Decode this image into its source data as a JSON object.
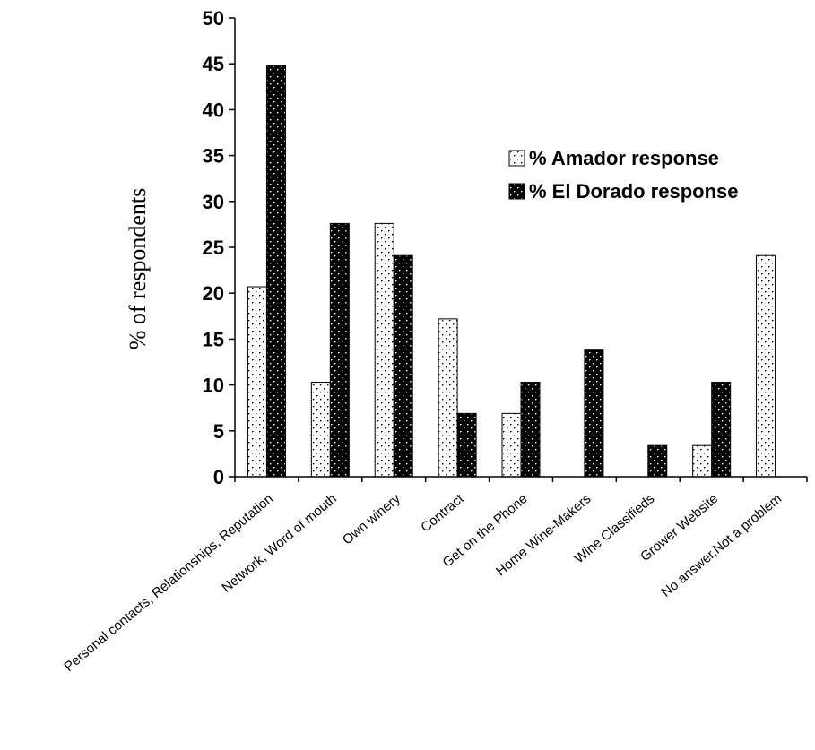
{
  "chart_data": {
    "type": "bar",
    "categories": [
      "Personal contacts, Relationships, Reputation",
      "Network, Word of mouth",
      "Own winery",
      "Contract",
      "Get on the Phone",
      "Home Wine-Makers",
      "Wine Classifieds",
      "Grower Website",
      "No answer,Not a problem"
    ],
    "series": [
      {
        "name": "% Amador response",
        "values": [
          20.7,
          10.3,
          27.6,
          17.2,
          6.9,
          0,
          0,
          3.4,
          24.1
        ],
        "color": "#ffffff",
        "pattern_dot": "#000000"
      },
      {
        "name": "% El Dorado response",
        "values": [
          44.8,
          27.6,
          24.1,
          6.9,
          10.3,
          13.8,
          3.4,
          10.3,
          0
        ],
        "color": "#000000",
        "pattern_dot": "#ffffff"
      }
    ],
    "title": "",
    "xlabel": "",
    "ylabel": "% of respondents",
    "ylim": [
      0,
      50
    ],
    "yticks": [
      "0",
      "5",
      "10",
      "15",
      "20",
      "25",
      "30",
      "35",
      "40",
      "45",
      "50"
    ],
    "grid": false,
    "legend_position": "top-right"
  }
}
